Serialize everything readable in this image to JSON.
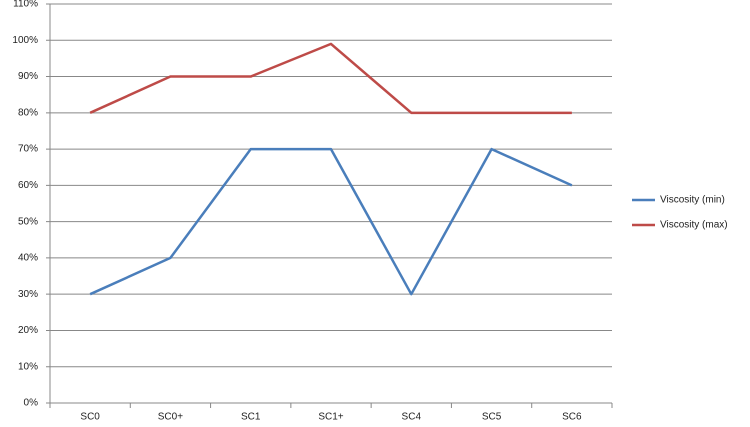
{
  "chart_data": {
    "type": "line",
    "categories": [
      "SC0",
      "SC0+",
      "SC1",
      "SC1+",
      "SC4",
      "SC5",
      "SC6"
    ],
    "series": [
      {
        "name": "Viscosity (min)",
        "color": "#4a7ebb",
        "values": [
          30,
          40,
          70,
          70,
          30,
          70,
          60
        ]
      },
      {
        "name": "Viscosity (max)",
        "color": "#be4b48",
        "values": [
          80,
          90,
          90,
          99,
          80,
          80,
          80
        ]
      }
    ],
    "ylim": [
      0,
      110
    ],
    "yticks": [
      {
        "value": 0,
        "label": "0%"
      },
      {
        "value": 10,
        "label": "10%"
      },
      {
        "value": 20,
        "label": "20%"
      },
      {
        "value": 30,
        "label": "30%"
      },
      {
        "value": 40,
        "label": "40%"
      },
      {
        "value": 50,
        "label": "50%"
      },
      {
        "value": 60,
        "label": "60%"
      },
      {
        "value": 70,
        "label": "70%"
      },
      {
        "value": 80,
        "label": "80%"
      },
      {
        "value": 90,
        "label": "90%"
      },
      {
        "value": 100,
        "label": "100%"
      },
      {
        "value": 110,
        "label": "110%"
      }
    ],
    "grid": true,
    "legend": "right"
  }
}
